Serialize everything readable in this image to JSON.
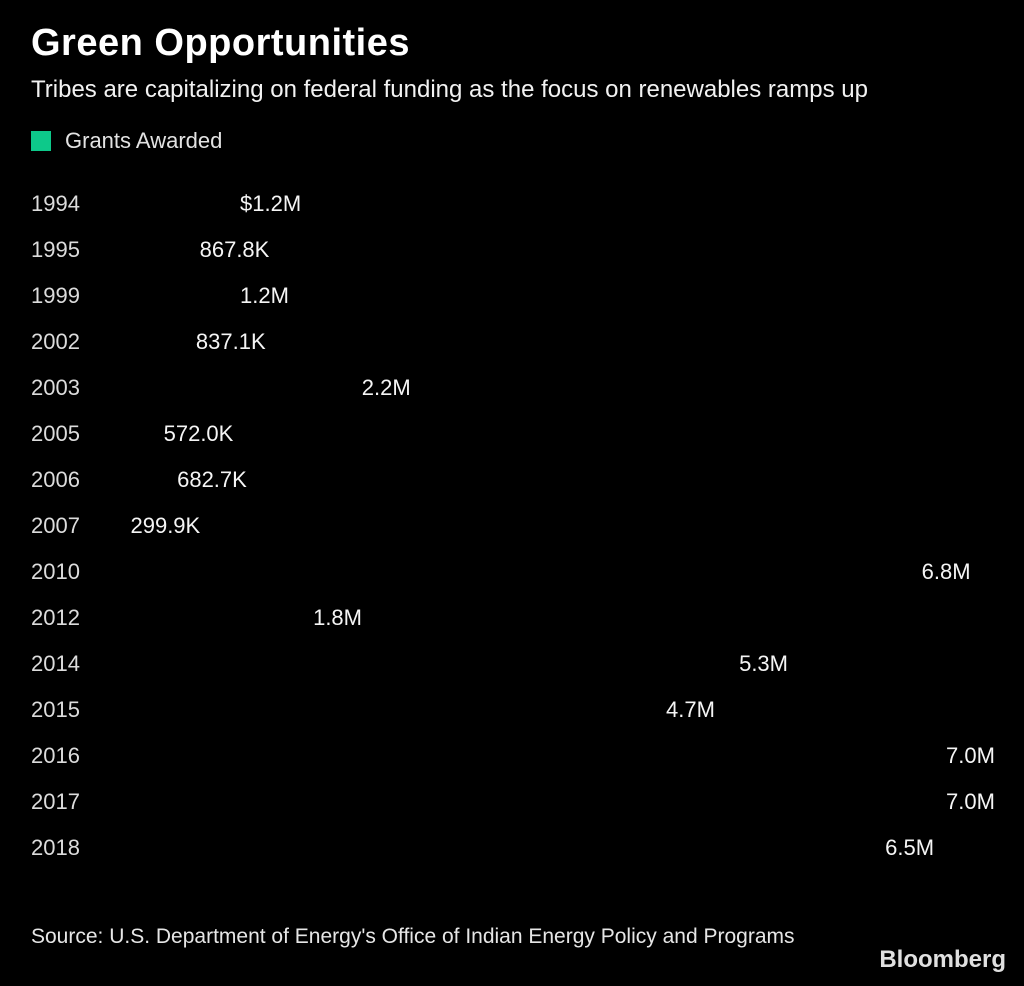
{
  "header": {
    "title": "Green Opportunities",
    "subtitle": "Tribes are capitalizing on federal funding as the focus on renewables ramps up",
    "legend": [
      {
        "label": "Grants Awarded",
        "color": "#0dc98a"
      }
    ]
  },
  "chart_data": {
    "type": "bar",
    "orientation": "horizontal",
    "title": "Green Opportunities",
    "series_name": "Grants Awarded",
    "categories": [
      "1994",
      "1995",
      "1999",
      "2002",
      "2003",
      "2005",
      "2006",
      "2007",
      "2010",
      "2012",
      "2014",
      "2015",
      "2016",
      "2017",
      "2018"
    ],
    "values": [
      1200000,
      867800,
      1200000,
      837100,
      2200000,
      572000,
      682700,
      299900,
      6800000,
      1800000,
      5300000,
      4700000,
      7000000,
      7000000,
      6500000
    ],
    "value_labels": [
      "$1.2M",
      "867.8K",
      "1.2M",
      "837.1K",
      "2.2M",
      "572.0K",
      "682.7K",
      "299.9K",
      "6.8M",
      "1.8M",
      "5.3M",
      "4.7M",
      "7.0M",
      "7.0M",
      "6.5M"
    ],
    "unit": "USD",
    "xlim": [
      0,
      7000000
    ],
    "bar_color": "#0dc98a",
    "background_color": "#000000",
    "grid": false,
    "axis_ticks": "none",
    "value_label_position": "right-of-bar",
    "legend_position": "top-left"
  },
  "footer": {
    "source": "Source: U.S. Department of Energy's Office of Indian Energy Policy and Programs",
    "logo": "Bloomberg"
  }
}
